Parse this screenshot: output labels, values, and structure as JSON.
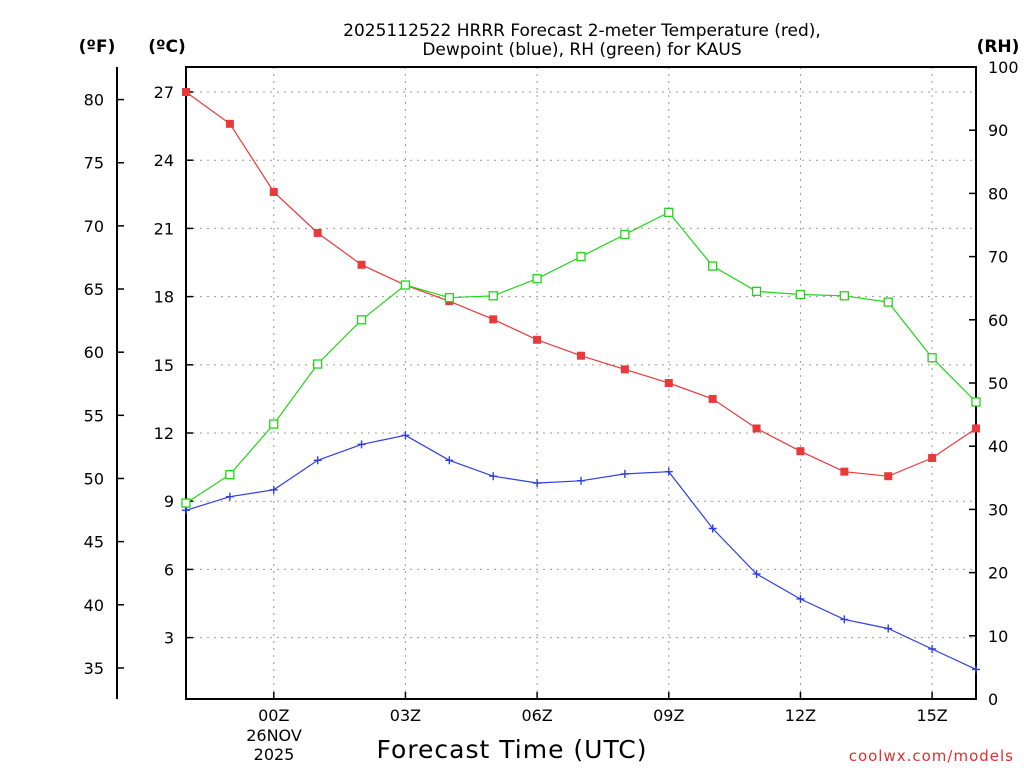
{
  "chart_data": {
    "type": "line",
    "title_line1": "2025112522 HRRR Forecast 2-meter Temperature (red),",
    "title_line2": "Dewpoint (blue), RH (green) for KAUS",
    "xlabel": "Forecast Time (UTC)",
    "date_day": "26NOV",
    "date_year": "2025",
    "credit": "coolwx.com/models",
    "unit_f": "(ºF)",
    "unit_c": "(ºC)",
    "unit_rh": "(RH)",
    "x": [
      22,
      23,
      24,
      25,
      26,
      27,
      28,
      29,
      30,
      31,
      32,
      33,
      34,
      35,
      36,
      37,
      38,
      39,
      40
    ],
    "xlim": [
      22,
      40
    ],
    "x_ticks": [
      {
        "value": 24,
        "label": "00Z"
      },
      {
        "value": 27,
        "label": "03Z"
      },
      {
        "value": 30,
        "label": "06Z"
      },
      {
        "value": 33,
        "label": "09Z"
      },
      {
        "value": 36,
        "label": "12Z"
      },
      {
        "value": 39,
        "label": "15Z"
      }
    ],
    "y_c_lim": [
      0.3,
      28.1
    ],
    "y_c_ticks": [
      3,
      6,
      9,
      12,
      15,
      18,
      21,
      24,
      27
    ],
    "y_f_ticks": [
      35,
      40,
      45,
      50,
      55,
      60,
      65,
      70,
      75,
      80
    ],
    "y_rh_lim": [
      0,
      100
    ],
    "y_rh_ticks": [
      0,
      10,
      20,
      30,
      40,
      50,
      60,
      70,
      80,
      90,
      100
    ],
    "series": [
      {
        "name": "Temperature",
        "axis": "celsius",
        "color": "#e83a3a",
        "marker": "filled-square",
        "values": [
          27.0,
          25.6,
          22.6,
          20.8,
          19.4,
          18.5,
          17.8,
          17.0,
          16.1,
          15.4,
          14.8,
          14.2,
          13.5,
          12.2,
          11.2,
          10.3,
          10.1,
          10.9,
          12.2
        ]
      },
      {
        "name": "Dewpoint",
        "axis": "celsius",
        "color": "#2f3fe0",
        "marker": "plus",
        "values": [
          8.6,
          9.2,
          9.5,
          10.8,
          11.5,
          11.9,
          10.8,
          10.1,
          9.8,
          9.9,
          10.2,
          10.3,
          7.8,
          5.8,
          4.7,
          3.8,
          3.4,
          2.5,
          1.6
        ]
      },
      {
        "name": "RH",
        "axis": "rh",
        "color": "#22d41a",
        "marker": "open-square",
        "values": [
          31.0,
          35.5,
          43.5,
          53.0,
          60.0,
          65.5,
          63.5,
          63.8,
          66.5,
          70.0,
          73.5,
          77.0,
          68.5,
          64.5,
          64.0,
          63.8,
          62.8,
          54.0,
          47.0
        ]
      }
    ]
  }
}
